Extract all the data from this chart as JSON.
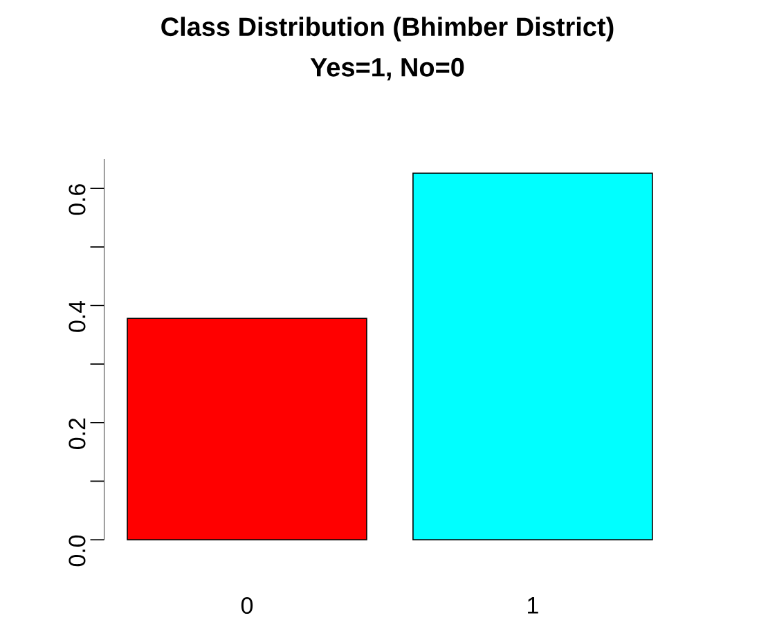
{
  "chart_data": {
    "type": "bar",
    "title": "Class Distribution (Bhimber District)",
    "subtitle": "Yes=1, No=0",
    "categories": [
      "0",
      "1"
    ],
    "values": [
      0.378,
      0.626
    ],
    "colors": [
      "#ff0000",
      "#00ffff"
    ],
    "ylim": [
      0,
      0.65
    ],
    "yticks": [
      {
        "value": 0,
        "label": "0.0"
      },
      {
        "value": 0.1,
        "label": null
      },
      0.2,
      {
        "value": 0.3,
        "label": null
      },
      0.4,
      {
        "value": 0.5,
        "label": null
      },
      0.6
    ],
    "grid": false
  }
}
